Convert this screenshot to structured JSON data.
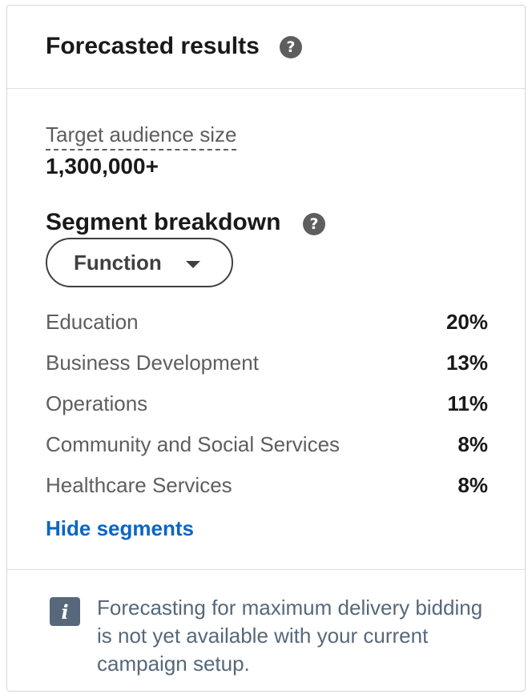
{
  "header": {
    "title": "Forecasted results",
    "help_icon": "question-circle-icon"
  },
  "audience": {
    "label": "Target audience size",
    "value": "1,300,000+"
  },
  "segments": {
    "title": "Segment breakdown",
    "help_icon": "question-circle-icon",
    "dropdown": {
      "selected": "Function",
      "icon": "caret-down-icon"
    },
    "items": [
      {
        "name": "Education",
        "percent": "20%"
      },
      {
        "name": "Business Development",
        "percent": "13%"
      },
      {
        "name": "Operations",
        "percent": "11%"
      },
      {
        "name": "Community and Social Services",
        "percent": "8%"
      },
      {
        "name": "Healthcare Services",
        "percent": "8%"
      }
    ],
    "toggle_label": "Hide segments"
  },
  "footer": {
    "info_icon": "info-icon",
    "message": "Forecasting for maximum delivery bidding is not yet available with your current campaign setup."
  },
  "colors": {
    "link": "#0a66c2",
    "info_icon_bg": "#56687a",
    "muted_text": "#5e5e5e",
    "primary_text": "#191919"
  }
}
